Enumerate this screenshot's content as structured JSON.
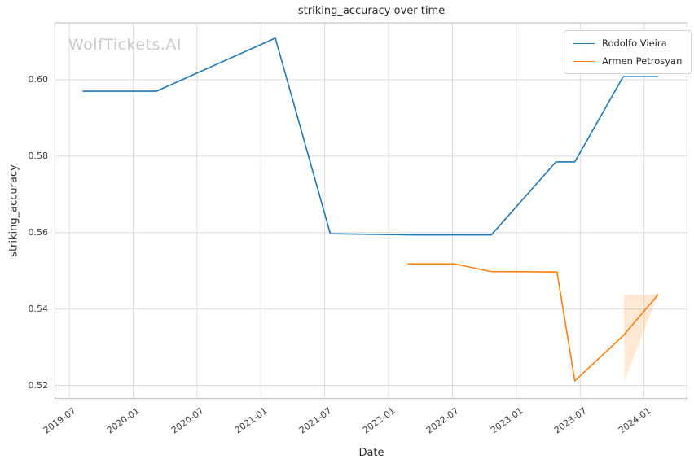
{
  "title": "striking_accuracy over time",
  "watermark": "WolfTickets.AI",
  "chart_data": {
    "type": "line",
    "title": "striking_accuracy over time",
    "xlabel": "Date",
    "ylabel": "striking_accuracy",
    "grid": true,
    "legend_position": "upper right",
    "x_tick_labels": [
      "2019-07",
      "2020-01",
      "2020-07",
      "2021-01",
      "2021-07",
      "2022-01",
      "2022-07",
      "2023-01",
      "2023-07",
      "2024-01"
    ],
    "y_ticks": [
      0.52,
      0.54,
      0.56,
      0.58,
      0.6
    ],
    "xlim_months": [
      -1.34,
      58.04
    ],
    "ylim": [
      0.5166,
      0.6149
    ],
    "series": [
      {
        "name": "Rodolfo Vieira",
        "color": "#1f77b4",
        "points": [
          {
            "date": "2019-08-10",
            "value": 0.597
          },
          {
            "date": "2020-03-07",
            "value": 0.597
          },
          {
            "date": "2021-02-12",
            "value": 0.6109
          },
          {
            "date": "2021-07-17",
            "value": 0.5597
          },
          {
            "date": "2022-03-12",
            "value": 0.5594
          },
          {
            "date": "2022-10-21",
            "value": 0.5594
          },
          {
            "date": "2023-04-23",
            "value": 0.5785
          },
          {
            "date": "2023-06-16",
            "value": 0.5785
          },
          {
            "date": "2023-11-02",
            "value": 0.6008
          },
          {
            "date": "2024-02-10",
            "value": 0.6008
          }
        ]
      },
      {
        "name": "Armen Petrosyan",
        "color": "#ff7f0e",
        "points": [
          {
            "date": "2022-02-26",
            "value": 0.5518
          },
          {
            "date": "2022-07-07",
            "value": 0.5518
          },
          {
            "date": "2022-10-20",
            "value": 0.5498
          },
          {
            "date": "2023-04-26",
            "value": 0.5497
          },
          {
            "date": "2023-06-16",
            "value": 0.5212
          },
          {
            "date": "2023-11-02",
            "value": 0.533
          },
          {
            "date": "2024-02-10",
            "value": 0.5437
          }
        ]
      }
    ],
    "band": {
      "series": "Armen Petrosyan",
      "color": "#ff7f0e",
      "opacity": 0.18,
      "polygon": [
        {
          "date": "2023-11-04",
          "value": 0.5437
        },
        {
          "date": "2024-02-10",
          "value": 0.5437
        },
        {
          "date": "2023-11-06",
          "value": 0.5212
        }
      ]
    }
  }
}
